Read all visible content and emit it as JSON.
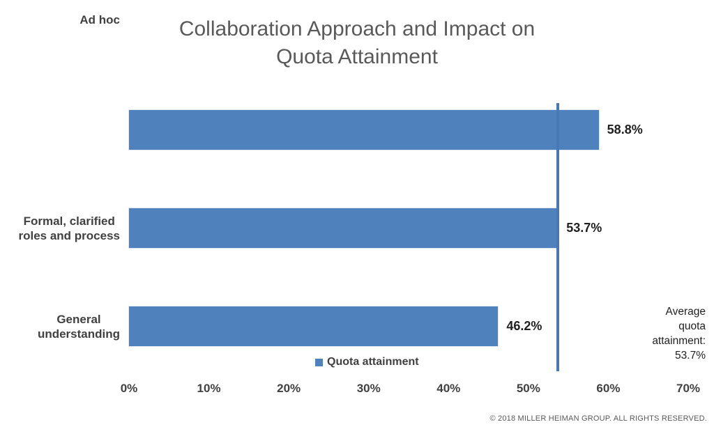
{
  "title": "Collaboration Approach and Impact on\nQuota Attainment",
  "chart_data": {
    "type": "bar",
    "orientation": "horizontal",
    "title": "Collaboration Approach and Impact on Quota Attainment",
    "categories": [
      "Formal, clarified\nroles and process",
      "General\nunderstanding",
      "Ad hoc"
    ],
    "values": [
      58.8,
      53.7,
      46.2
    ],
    "value_labels": [
      "58.8%",
      "53.7%",
      "46.2%"
    ],
    "series": [
      {
        "name": "Quota attainment",
        "values": [
          58.8,
          53.7,
          46.2
        ]
      }
    ],
    "xlim": [
      0,
      70
    ],
    "x_ticks": [
      "0%",
      "10%",
      "20%",
      "30%",
      "40%",
      "50%",
      "60%",
      "70%"
    ],
    "grid": false,
    "legend_position": "bottom",
    "bar_color": "#4F81BD",
    "average_line": {
      "value": 53.7,
      "color": "#4878B6",
      "annotation": "Average\nquota\nattainment:\n53.7%"
    }
  },
  "legend": {
    "label": "Quota attainment",
    "swatch_color": "#4F81BD"
  },
  "annotation": {
    "text": "Average\nquota\nattainment:\n53.7%"
  },
  "footer": {
    "copyright": "© 2018 MILLER HEIMAN GROUP. ALL RIGHTS RESERVED."
  }
}
